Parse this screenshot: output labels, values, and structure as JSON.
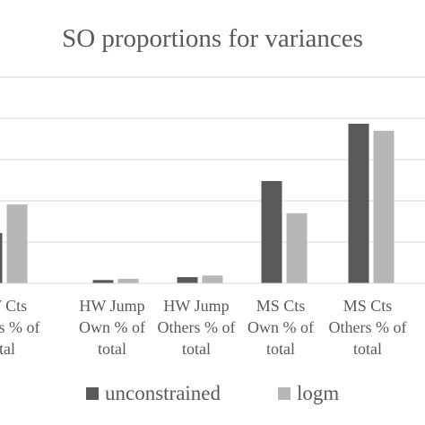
{
  "chart_data": {
    "type": "bar",
    "title": "SO proportions for variances",
    "xlabel": "",
    "ylabel": "",
    "ylim": [
      0,
      5
    ],
    "grid": true,
    "legend_position": "bottom",
    "categories": [
      [
        "HW Cts",
        "Others % of",
        "total"
      ],
      [
        "HW Jump",
        "Own % of",
        "total"
      ],
      [
        "HW Jump",
        "Others % of",
        "total"
      ],
      [
        "MS Cts",
        "Own % of",
        "total"
      ],
      [
        "MS Cts",
        "Others % of",
        "total"
      ]
    ],
    "series": [
      {
        "name": "unconstrained",
        "color": "#595959",
        "values": [
          1.22,
          0.08,
          0.15,
          2.48,
          3.87
        ]
      },
      {
        "name": "logm",
        "color": "#b7b7b7",
        "values": [
          1.91,
          0.11,
          0.19,
          1.7,
          3.7
        ]
      }
    ]
  }
}
